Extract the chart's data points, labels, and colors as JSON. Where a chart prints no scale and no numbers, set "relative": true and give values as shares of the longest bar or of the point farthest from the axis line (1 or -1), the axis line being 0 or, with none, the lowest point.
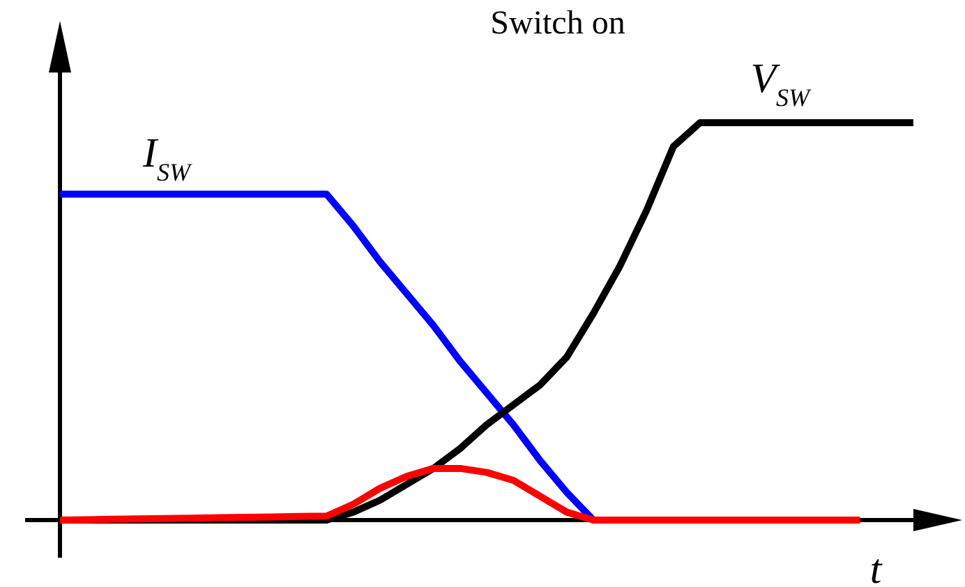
{
  "chart_data": {
    "type": "line",
    "title": "Switch on",
    "xlabel": "t",
    "relative": true,
    "marker": "none",
    "line_style": "solid",
    "categories": [
      null,
      null,
      null,
      null,
      null,
      null,
      null,
      null,
      null,
      null,
      null,
      null,
      null,
      null,
      null,
      null,
      null,
      null,
      null,
      null,
      null,
      null,
      null,
      null,
      null,
      null,
      null,
      null,
      null,
      null,
      null,
      null,
      null
    ],
    "series": [
      {
        "name": "I$_{SW}$",
        "color": "#0000ff",
        "values": [
          0.82,
          0.82,
          0.82,
          0.82,
          0.82,
          0.82,
          0.82,
          0.82,
          0.82,
          0.82,
          0.82,
          0.74,
          0.65,
          0.57,
          0.49,
          0.4,
          0.32,
          0.24,
          0.15,
          0.07,
          0,
          null,
          null,
          null,
          null,
          null,
          null,
          null,
          null,
          null,
          null,
          null,
          null
        ]
      },
      {
        "name": "V$_{SW}$",
        "color": "#000000",
        "values": [
          0,
          0,
          0,
          0,
          0,
          0,
          0,
          0,
          0,
          0,
          0,
          0.02,
          0.05,
          0.09,
          0.13,
          0.18,
          0.24,
          0.29,
          0.34,
          0.41,
          0.52,
          0.64,
          0.78,
          0.94,
          1,
          1,
          1,
          1,
          1,
          1,
          1,
          1,
          1
        ]
      },
      {
        "color": "#ff0000",
        "values": [
          0,
          0.001,
          0.002,
          0.003,
          0.004,
          0.005,
          0.006,
          0.007,
          0.008,
          0.009,
          0.01,
          0.04,
          0.08,
          0.11,
          0.13,
          0.13,
          0.12,
          0.1,
          0.06,
          0.02,
          0,
          0,
          0,
          0,
          0,
          0,
          0,
          0,
          0,
          0,
          0,
          null,
          null
        ]
      }
    ]
  }
}
